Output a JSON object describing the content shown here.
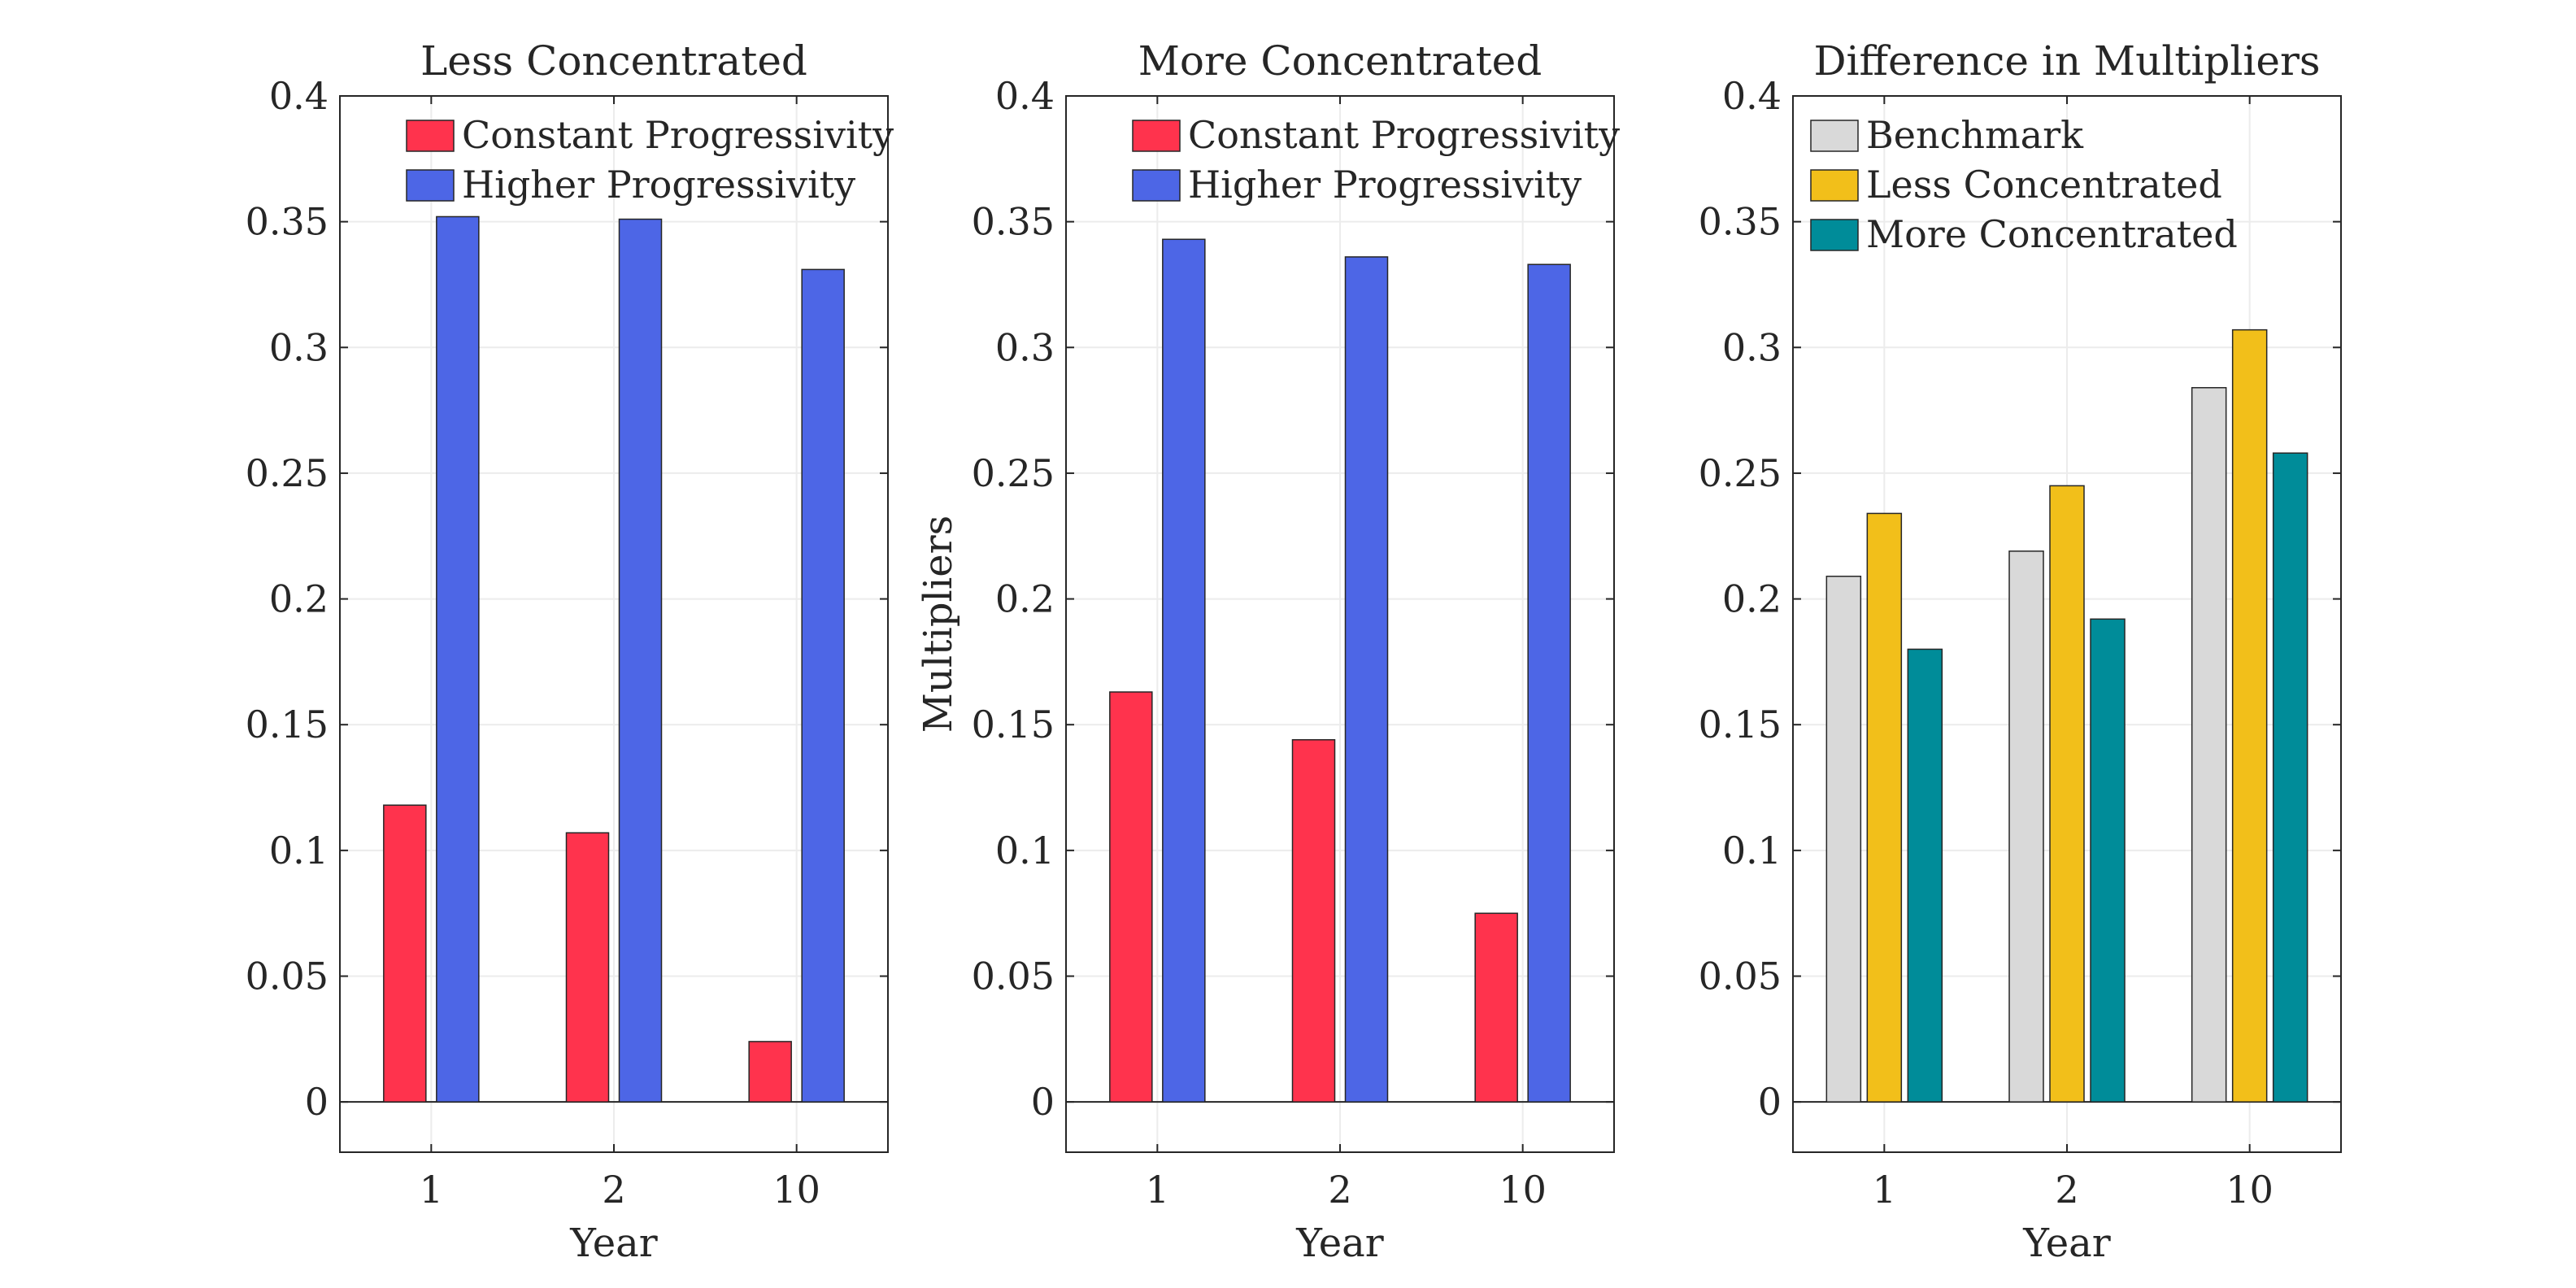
{
  "chart_data": [
    {
      "type": "bar",
      "title": "Less Concentrated",
      "xlabel": "Year",
      "ylabel": "",
      "categories": [
        "1",
        "2",
        "10"
      ],
      "ylim": [
        -0.02,
        0.4
      ],
      "yticks": [
        "0",
        "0.05",
        "0.1",
        "0.15",
        "0.2",
        "0.25",
        "0.3",
        "0.35",
        "0.4"
      ],
      "grid": true,
      "legend_position": "top-right",
      "series": [
        {
          "name": "Constant Progressivity",
          "color": "#ff334d",
          "values": [
            0.118,
            0.107,
            0.024
          ]
        },
        {
          "name": "Higher Progressivity",
          "color": "#4d66e6",
          "values": [
            0.352,
            0.351,
            0.331
          ]
        }
      ]
    },
    {
      "type": "bar",
      "title": "More Concentrated",
      "xlabel": "Year",
      "ylabel": "Multipliers",
      "categories": [
        "1",
        "2",
        "10"
      ],
      "ylim": [
        -0.02,
        0.4
      ],
      "yticks": [
        "0",
        "0.05",
        "0.1",
        "0.15",
        "0.2",
        "0.25",
        "0.3",
        "0.35",
        "0.4"
      ],
      "grid": true,
      "legend_position": "top-right",
      "series": [
        {
          "name": "Constant Progressivity",
          "color": "#ff334d",
          "values": [
            0.163,
            0.144,
            0.075
          ]
        },
        {
          "name": "Higher Progressivity",
          "color": "#4d66e6",
          "values": [
            0.343,
            0.336,
            0.333
          ]
        }
      ]
    },
    {
      "type": "bar",
      "title": "Difference in Multipliers",
      "xlabel": "Year",
      "ylabel": "",
      "categories": [
        "1",
        "2",
        "10"
      ],
      "ylim": [
        -0.02,
        0.4
      ],
      "yticks": [
        "0",
        "0.05",
        "0.1",
        "0.15",
        "0.2",
        "0.25",
        "0.3",
        "0.35",
        "0.4"
      ],
      "grid": true,
      "legend_position": "top-left",
      "series": [
        {
          "name": "Benchmark",
          "color": "#d9d9d9",
          "values": [
            0.209,
            0.219,
            0.284
          ]
        },
        {
          "name": "Less Concentrated",
          "color": "#f2bf1a",
          "values": [
            0.234,
            0.245,
            0.307
          ]
        },
        {
          "name": "More Concentrated",
          "color": "#008c99",
          "values": [
            0.18,
            0.192,
            0.258
          ]
        }
      ]
    }
  ]
}
